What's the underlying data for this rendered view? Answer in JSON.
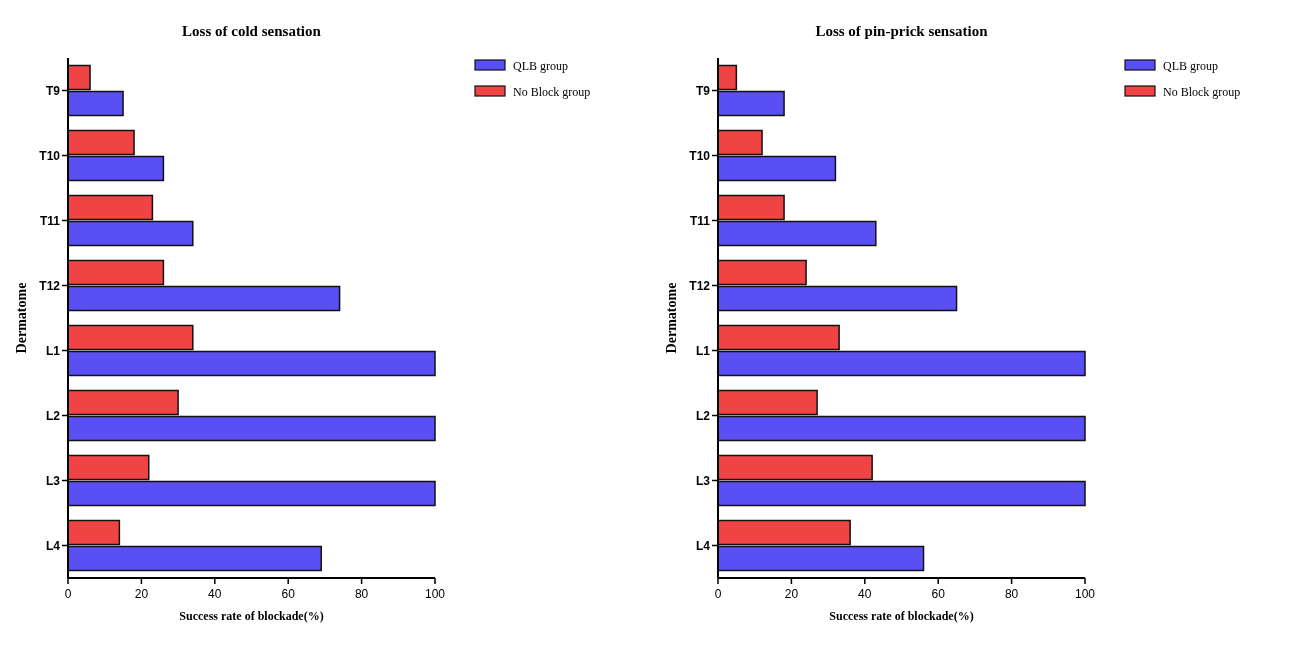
{
  "chart_data": [
    {
      "type": "bar",
      "orientation": "horizontal",
      "title": "Loss of cold sensation",
      "xlabel": "Success rate of blockade(%)",
      "ylabel": "Dermatome",
      "categories": [
        "T9",
        "T10",
        "T11",
        "T12",
        "L1",
        "L2",
        "L3",
        "L4"
      ],
      "series": [
        {
          "name": "QLB group",
          "color": "#5a4ff2",
          "values": [
            15,
            26,
            34,
            74,
            100,
            100,
            100,
            69
          ]
        },
        {
          "name": "No Block group",
          "color": "#f04444",
          "values": [
            6,
            18,
            23,
            26,
            34,
            30,
            22,
            14
          ]
        }
      ],
      "xlim": [
        0,
        100
      ],
      "xticks": [
        0,
        20,
        40,
        60,
        80,
        100
      ],
      "legend": "top right",
      "grid": false
    },
    {
      "type": "bar",
      "orientation": "horizontal",
      "title": "Loss of pin-prick sensation",
      "xlabel": "Success rate of blockade(%)",
      "ylabel": "Dermatome",
      "categories": [
        "T9",
        "T10",
        "T11",
        "T12",
        "L1",
        "L2",
        "L3",
        "L4"
      ],
      "series": [
        {
          "name": "QLB group",
          "color": "#5a4ff2",
          "values": [
            18,
            32,
            43,
            65,
            100,
            100,
            100,
            56
          ]
        },
        {
          "name": "No Block group",
          "color": "#f04444",
          "values": [
            5,
            12,
            18,
            24,
            33,
            27,
            42,
            36
          ]
        }
      ],
      "xlim": [
        0,
        100
      ],
      "xticks": [
        0,
        20,
        40,
        60,
        80,
        100
      ],
      "legend": "top right",
      "grid": false
    }
  ]
}
